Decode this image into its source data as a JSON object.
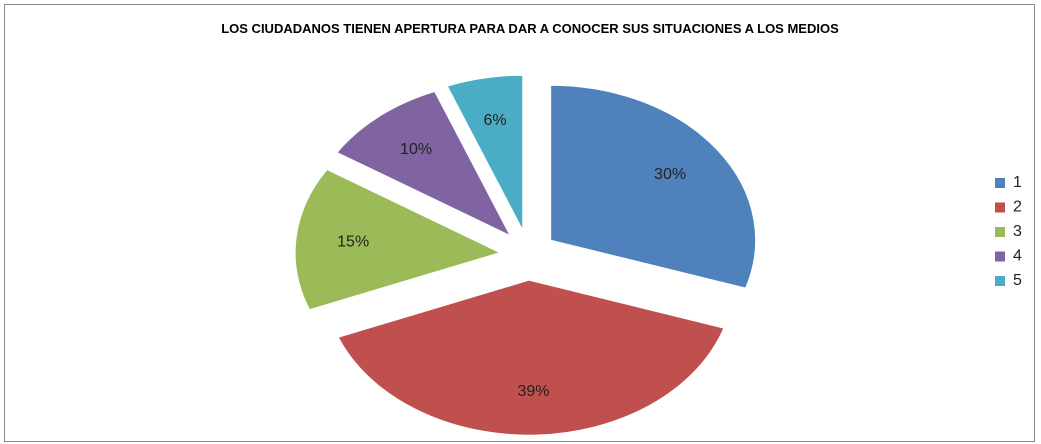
{
  "chart_data": {
    "type": "pie",
    "title": "LOS CIUDADANOS TIENEN APERTURA PARA DAR A CONOCER SUS SITUACIONES A LOS MEDIOS",
    "categories": [
      "1",
      "2",
      "3",
      "4",
      "5"
    ],
    "values": [
      30,
      39,
      15,
      10,
      6
    ],
    "value_labels": [
      "30%",
      "39%",
      "15%",
      "10%",
      "6%"
    ],
    "colors": [
      "#4f81bd",
      "#c0504d",
      "#9bbb59",
      "#8064a2",
      "#4bacc6"
    ],
    "legend": "right"
  }
}
